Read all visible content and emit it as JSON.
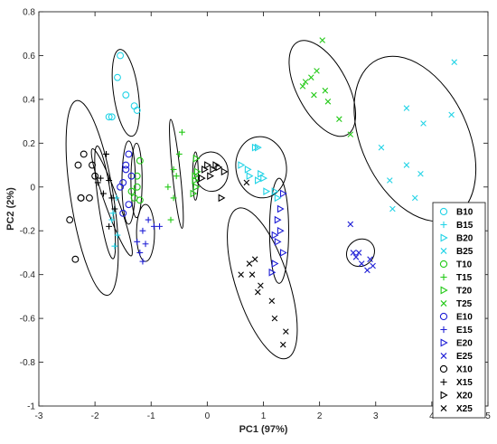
{
  "chart_data": {
    "type": "scatter",
    "title": "",
    "xlabel": "PC1 (97%)",
    "ylabel": "PC2 (2%)",
    "xlim": [
      -3,
      5
    ],
    "ylim": [
      -1,
      0.8
    ],
    "xticks": [
      -3,
      -2,
      -1,
      0,
      1,
      2,
      3,
      4,
      5
    ],
    "yticks": [
      -1,
      -0.8,
      -0.6,
      -0.4,
      -0.2,
      0,
      0.2,
      0.4,
      0.6,
      0.8
    ],
    "grid": false,
    "legend_position": "bottom-right",
    "series": [
      {
        "name": "B10",
        "marker": "circle",
        "color": "#22d3e6",
        "points": [
          [
            -1.55,
            0.6
          ],
          [
            -1.6,
            0.5
          ],
          [
            -1.7,
            0.32
          ],
          [
            -1.75,
            0.32
          ],
          [
            -1.25,
            0.35
          ],
          [
            -1.3,
            0.37
          ],
          [
            -1.45,
            0.42
          ]
        ]
      },
      {
        "name": "B15",
        "marker": "plus",
        "color": "#22d3e6",
        "points": [
          [
            -1.6,
            -0.22
          ],
          [
            -1.65,
            -0.27
          ],
          [
            -1.7,
            -0.15
          ],
          [
            -1.65,
            -0.1
          ],
          [
            -1.62,
            -0.05
          ],
          [
            -1.68,
            -0.12
          ]
        ]
      },
      {
        "name": "B20",
        "marker": "triangle-right",
        "color": "#22d3e6",
        "points": [
          [
            0.75,
            0.05
          ],
          [
            0.85,
            0.18
          ],
          [
            0.9,
            0.03
          ],
          [
            0.95,
            0.06
          ],
          [
            1.0,
            0.04
          ],
          [
            0.9,
            0.18
          ],
          [
            0.6,
            0.1
          ],
          [
            0.72,
            0.08
          ],
          [
            1.2,
            -0.02
          ],
          [
            1.25,
            -0.05
          ],
          [
            1.05,
            -0.02
          ]
        ]
      },
      {
        "name": "B25",
        "marker": "x",
        "color": "#22d3e6",
        "points": [
          [
            4.4,
            0.57
          ],
          [
            4.35,
            0.33
          ],
          [
            3.85,
            0.29
          ],
          [
            3.55,
            0.36
          ],
          [
            3.1,
            0.18
          ],
          [
            3.55,
            0.1
          ],
          [
            3.8,
            0.06
          ],
          [
            3.7,
            -0.05
          ],
          [
            3.25,
            0.03
          ],
          [
            3.3,
            -0.1
          ]
        ]
      },
      {
        "name": "T10",
        "marker": "circle",
        "color": "#22c916",
        "points": [
          [
            -1.2,
            0.12
          ],
          [
            -1.25,
            0.05
          ],
          [
            -1.3,
            -0.05
          ],
          [
            -1.2,
            -0.06
          ],
          [
            -1.25,
            0.0
          ],
          [
            -1.35,
            -0.02
          ]
        ]
      },
      {
        "name": "T15",
        "marker": "plus",
        "color": "#22c916",
        "points": [
          [
            -0.45,
            0.25
          ],
          [
            -0.5,
            0.15
          ],
          [
            -0.55,
            0.05
          ],
          [
            -0.6,
            -0.05
          ],
          [
            -0.65,
            -0.15
          ],
          [
            -0.6,
            0.08
          ],
          [
            -0.7,
            0.0
          ]
        ]
      },
      {
        "name": "T20",
        "marker": "triangle-right",
        "color": "#22c916",
        "points": [
          [
            -0.2,
            0.13
          ],
          [
            -0.18,
            0.07
          ],
          [
            -0.22,
            0.03
          ],
          [
            -0.2,
            0.0
          ],
          [
            -0.25,
            -0.03
          ],
          [
            -0.22,
            0.05
          ]
        ]
      },
      {
        "name": "T25",
        "marker": "x",
        "color": "#22c916",
        "points": [
          [
            2.05,
            0.67
          ],
          [
            1.95,
            0.53
          ],
          [
            1.85,
            0.5
          ],
          [
            1.75,
            0.48
          ],
          [
            1.7,
            0.46
          ],
          [
            2.1,
            0.44
          ],
          [
            1.9,
            0.42
          ],
          [
            2.15,
            0.39
          ],
          [
            2.35,
            0.31
          ],
          [
            2.55,
            0.24
          ]
        ]
      },
      {
        "name": "E10",
        "marker": "circle",
        "color": "#1f1fd6",
        "points": [
          [
            -1.4,
            0.15
          ],
          [
            -1.45,
            0.08
          ],
          [
            -1.5,
            0.02
          ],
          [
            -1.55,
            0.0
          ],
          [
            -1.4,
            -0.08
          ],
          [
            -1.5,
            -0.12
          ],
          [
            -1.45,
            0.1
          ],
          [
            -1.35,
            0.05
          ]
        ]
      },
      {
        "name": "E15",
        "marker": "plus",
        "color": "#1f1fd6",
        "points": [
          [
            -0.85,
            -0.18
          ],
          [
            -0.95,
            -0.18
          ],
          [
            -1.05,
            -0.15
          ],
          [
            -1.15,
            -0.2
          ],
          [
            -1.25,
            -0.25
          ],
          [
            -1.2,
            -0.3
          ],
          [
            -1.1,
            -0.26
          ],
          [
            -1.15,
            -0.34
          ]
        ]
      },
      {
        "name": "E20",
        "marker": "triangle-right",
        "color": "#1f1fd6",
        "points": [
          [
            1.35,
            -0.03
          ],
          [
            1.3,
            -0.1
          ],
          [
            1.25,
            -0.15
          ],
          [
            1.3,
            -0.2
          ],
          [
            1.25,
            -0.25
          ],
          [
            1.35,
            -0.3
          ],
          [
            1.2,
            -0.22
          ],
          [
            1.2,
            -0.35
          ],
          [
            1.15,
            -0.39
          ]
        ]
      },
      {
        "name": "E25",
        "marker": "x",
        "color": "#1f1fd6",
        "points": [
          [
            2.55,
            -0.17
          ],
          [
            2.6,
            -0.3
          ],
          [
            2.65,
            -0.32
          ],
          [
            2.7,
            -0.3
          ],
          [
            2.75,
            -0.35
          ],
          [
            2.85,
            -0.38
          ],
          [
            2.9,
            -0.33
          ],
          [
            2.95,
            -0.36
          ]
        ]
      },
      {
        "name": "X10",
        "marker": "circle",
        "color": "#000000",
        "points": [
          [
            -2.35,
            -0.33
          ],
          [
            -2.45,
            -0.15
          ],
          [
            -2.25,
            -0.05
          ],
          [
            -2.3,
            0.1
          ],
          [
            -2.2,
            0.15
          ],
          [
            -2.05,
            0.1
          ],
          [
            -2.1,
            -0.05
          ],
          [
            -2.0,
            0.05
          ],
          [
            -2.25,
            -0.05
          ]
        ]
      },
      {
        "name": "X15",
        "marker": "plus",
        "color": "#000000",
        "points": [
          [
            -1.95,
            0.02
          ],
          [
            -1.85,
            -0.03
          ],
          [
            -1.8,
            0.15
          ],
          [
            -1.75,
            0.03
          ],
          [
            -1.7,
            -0.05
          ],
          [
            -1.65,
            -0.1
          ],
          [
            -1.75,
            -0.18
          ],
          [
            -1.9,
            0.04
          ]
        ]
      },
      {
        "name": "X20",
        "marker": "triangle-right",
        "color": "#000000",
        "points": [
          [
            -0.05,
            0.08
          ],
          [
            0.0,
            0.1
          ],
          [
            0.05,
            0.05
          ],
          [
            0.1,
            0.08
          ],
          [
            0.15,
            0.1
          ],
          [
            0.2,
            0.09
          ],
          [
            -0.1,
            0.04
          ],
          [
            0.3,
            0.07
          ],
          [
            0.25,
            -0.05
          ]
        ]
      },
      {
        "name": "X25",
        "marker": "x",
        "color": "#000000",
        "points": [
          [
            0.6,
            -0.4
          ],
          [
            0.75,
            -0.35
          ],
          [
            0.8,
            -0.4
          ],
          [
            0.85,
            -0.33
          ],
          [
            0.9,
            -0.48
          ],
          [
            0.95,
            -0.45
          ],
          [
            1.15,
            -0.52
          ],
          [
            1.2,
            -0.6
          ],
          [
            1.35,
            -0.72
          ],
          [
            1.4,
            -0.66
          ],
          [
            0.7,
            0.02
          ]
        ]
      }
    ],
    "ellipses": [
      {
        "center": [
          -2.05,
          -0.05
        ],
        "rx": 0.38,
        "ry": 0.45,
        "angle": -9
      },
      {
        "center": [
          -1.45,
          0.43
        ],
        "rx": 0.22,
        "ry": 0.2,
        "angle": -8
      },
      {
        "center": [
          -1.7,
          -0.07
        ],
        "rx": 0.12,
        "ry": 0.26,
        "angle": -20
      },
      {
        "center": [
          -1.82,
          -0.07
        ],
        "rx": 0.12,
        "ry": 0.26,
        "angle": -8
      },
      {
        "center": [
          -1.4,
          0.02
        ],
        "rx": 0.12,
        "ry": 0.19,
        "angle": 0
      },
      {
        "center": [
          -1.26,
          0.03
        ],
        "rx": 0.1,
        "ry": 0.17,
        "angle": 0
      },
      {
        "center": [
          -1.1,
          -0.21
        ],
        "rx": 0.16,
        "ry": 0.13,
        "angle": 0
      },
      {
        "center": [
          -0.55,
          0.06
        ],
        "rx": 0.07,
        "ry": 0.25,
        "angle": -6
      },
      {
        "center": [
          -0.21,
          0.05
        ],
        "rx": 0.05,
        "ry": 0.11,
        "angle": 0
      },
      {
        "center": [
          0.07,
          0.07
        ],
        "rx": 0.3,
        "ry": 0.09,
        "angle": -5
      },
      {
        "center": [
          0.96,
          0.09
        ],
        "rx": 0.45,
        "ry": 0.14,
        "angle": -8
      },
      {
        "center": [
          1.28,
          -0.2
        ],
        "rx": 0.17,
        "ry": 0.24,
        "angle": 0
      },
      {
        "center": [
          0.98,
          -0.44
        ],
        "rx": 0.47,
        "ry": 0.36,
        "angle": -18
      },
      {
        "center": [
          2.05,
          0.45
        ],
        "rx": 0.45,
        "ry": 0.24,
        "angle": -28
      },
      {
        "center": [
          3.7,
          0.22
        ],
        "rx": 0.95,
        "ry": 0.4,
        "angle": -25
      },
      {
        "center": [
          2.73,
          -0.3
        ],
        "rx": 0.26,
        "ry": 0.06,
        "angle": -40
      }
    ]
  }
}
